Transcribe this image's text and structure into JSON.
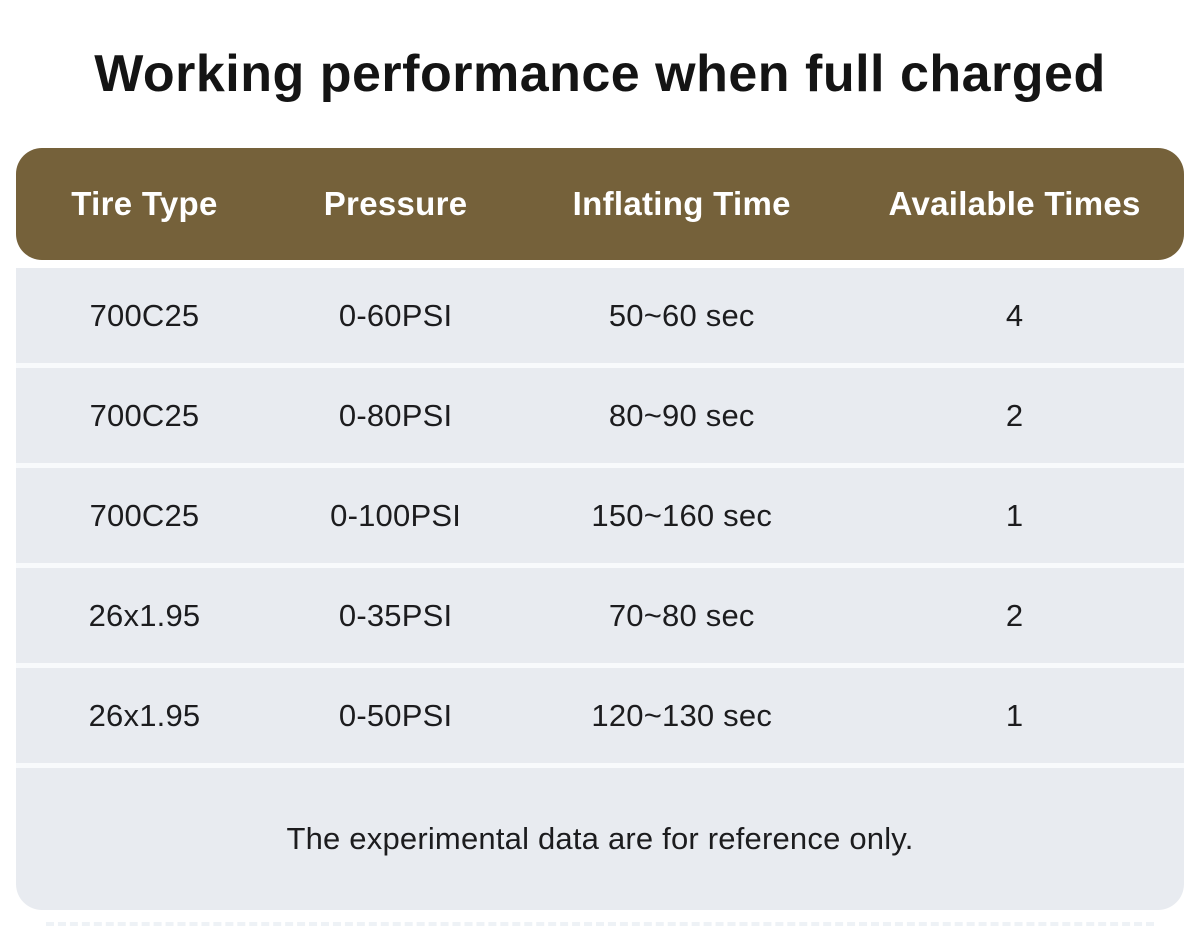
{
  "title": "Working performance when full charged",
  "table": {
    "columns": [
      "Tire Type",
      "Pressure",
      "Inflating Time",
      "Available Times"
    ],
    "rows": [
      [
        "700C25",
        "0-60PSI",
        "50~60 sec",
        "4"
      ],
      [
        "700C25",
        "0-80PSI",
        "80~90 sec",
        "2"
      ],
      [
        "700C25",
        "0-100PSI",
        "150~160 sec",
        "1"
      ],
      [
        "26x1.95",
        "0-35PSI",
        "70~80 sec",
        "2"
      ],
      [
        "26x1.95",
        "0-50PSI",
        "120~130 sec",
        "1"
      ]
    ],
    "note": "The experimental data are for reference only."
  },
  "colors": {
    "page_bg": "#FFFFFF",
    "header_bg": "#75613A",
    "header_text": "#FFFFFF",
    "row_bg": "#E8EBF0",
    "row_separator": "#F8FAFC",
    "body_text": "#1C1C1E",
    "title_text": "#141414"
  },
  "chart_data": {
    "type": "table",
    "title": "Working performance when full charged",
    "columns": [
      "Tire Type",
      "Pressure",
      "Inflating Time",
      "Available Times"
    ],
    "rows": [
      {
        "tire_type": "700C25",
        "pressure": "0-60PSI",
        "inflating_time": "50~60 sec",
        "available_times": 4
      },
      {
        "tire_type": "700C25",
        "pressure": "0-80PSI",
        "inflating_time": "80~90 sec",
        "available_times": 2
      },
      {
        "tire_type": "700C25",
        "pressure": "0-100PSI",
        "inflating_time": "150~160 sec",
        "available_times": 1
      },
      {
        "tire_type": "26x1.95",
        "pressure": "0-35PSI",
        "inflating_time": "70~80 sec",
        "available_times": 2
      },
      {
        "tire_type": "26x1.95",
        "pressure": "0-50PSI",
        "inflating_time": "120~130 sec",
        "available_times": 1
      }
    ],
    "note": "The experimental data are for reference only.",
    "layout": {
      "header_style": "brown rounded bar",
      "rows_style": "light gray bands with white separators",
      "alignment": "center"
    }
  }
}
